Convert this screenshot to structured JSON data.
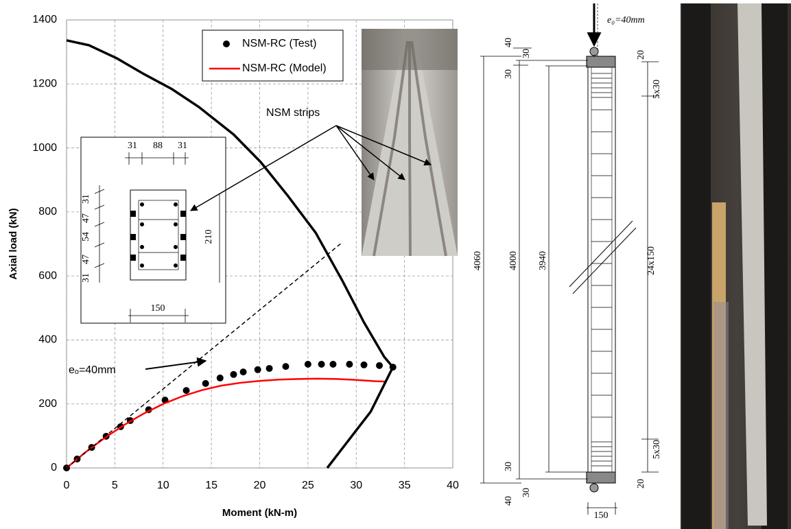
{
  "chart_data": {
    "type": "line",
    "xlabel": "Moment (kN-m)",
    "ylabel": "Axial load (kN)",
    "xlim": [
      0,
      40
    ],
    "ylim": [
      0,
      1400
    ],
    "xticks": [
      0,
      5,
      10,
      15,
      20,
      25,
      30,
      35,
      40
    ],
    "yticks": [
      0,
      200,
      400,
      600,
      800,
      1000,
      1200,
      1400
    ],
    "grid": true,
    "legend": "upper center",
    "series": [
      {
        "name": "NSM-RC (Test)",
        "type": "scatter",
        "color": "#000000",
        "x": [
          0,
          1.1,
          2.6,
          4.1,
          5.6,
          6.6,
          8.5,
          10.2,
          12.4,
          14.4,
          15.9,
          17.3,
          18.3,
          19.8,
          21,
          22.7,
          25,
          26.4,
          27.6,
          29.3,
          30.8,
          32.4,
          33.8
        ],
        "values": [
          0,
          28,
          64,
          99,
          129,
          148,
          182,
          212,
          242,
          264,
          281,
          292,
          300,
          307,
          311,
          317,
          324,
          324,
          324,
          324,
          322,
          320,
          315
        ]
      },
      {
        "name": "NSM-RC (Model)",
        "type": "line",
        "color": "#ff0000",
        "x": [
          0,
          2,
          4,
          6,
          8,
          10,
          12,
          14,
          16,
          18,
          20,
          22,
          24,
          26,
          28,
          30,
          32,
          33
        ],
        "values": [
          0,
          50,
          95,
          135,
          170,
          200,
          224,
          243,
          257,
          266,
          272,
          276,
          278,
          279,
          278,
          275,
          271,
          270
        ]
      },
      {
        "type": "line",
        "color": "#000000",
        "x": [
          0,
          2.3,
          5.2,
          8,
          10.9,
          13.7,
          17.3,
          20.1,
          22.9,
          25.8,
          28.6,
          30.8,
          32.9,
          33.8,
          31.5,
          29.3,
          27
        ],
        "values": [
          1336,
          1321,
          1280,
          1231,
          1184,
          1128,
          1042,
          956,
          851,
          735,
          583,
          455,
          347,
          315,
          176,
          90,
          0
        ]
      },
      {
        "type": "line",
        "style": "dashed",
        "color": "#000000",
        "x": [
          0,
          28.4
        ],
        "values": [
          0,
          701
        ]
      }
    ],
    "annotations": [
      {
        "text": "NSM strips"
      },
      {
        "text": "eₒ=40mm"
      }
    ]
  },
  "section_inset": {
    "width_dims": [
      31,
      88,
      31
    ],
    "height_dims": [
      31,
      47,
      54,
      47,
      31
    ],
    "height": 210,
    "width": 150
  },
  "elevation": {
    "eccentricity": "e₀=40mm",
    "labels": [
      40,
      30,
      30,
      20,
      "5x30",
      4060,
      4000,
      3940,
      "24x150",
      30,
      30,
      40,
      20,
      "5x30",
      150
    ]
  }
}
